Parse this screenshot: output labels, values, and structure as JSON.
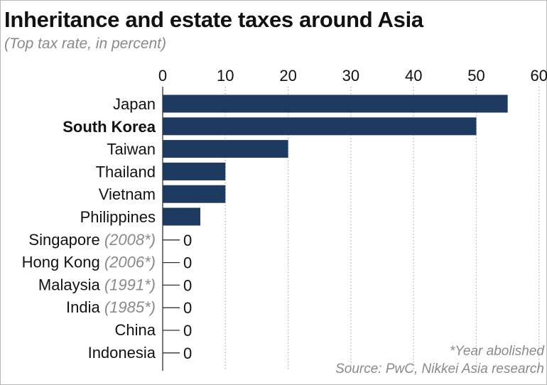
{
  "chart_data": {
    "type": "bar",
    "orientation": "horizontal",
    "title": "Inheritance and estate taxes around Asia",
    "subtitle": "(Top tax rate, in percent)",
    "xlim": [
      0,
      60
    ],
    "ticks": [
      0,
      10,
      20,
      30,
      40,
      50,
      60
    ],
    "categories": [
      {
        "label": "Japan",
        "value": 55,
        "note": "",
        "bold": false
      },
      {
        "label": "South Korea",
        "value": 50,
        "note": "",
        "bold": true
      },
      {
        "label": "Taiwan",
        "value": 20,
        "note": "",
        "bold": false
      },
      {
        "label": "Thailand",
        "value": 10,
        "note": "",
        "bold": false
      },
      {
        "label": "Vietnam",
        "value": 10,
        "note": "",
        "bold": false
      },
      {
        "label": "Philippines",
        "value": 6,
        "note": "",
        "bold": false
      },
      {
        "label": "Singapore",
        "value": 0,
        "note": "(2008*)",
        "bold": false
      },
      {
        "label": "Hong Kong",
        "value": 0,
        "note": "(2006*)",
        "bold": false
      },
      {
        "label": "Malaysia",
        "value": 0,
        "note": "(1991*)",
        "bold": false
      },
      {
        "label": "India",
        "value": 0,
        "note": "(1985*)",
        "bold": false
      },
      {
        "label": "China",
        "value": 0,
        "note": "",
        "bold": false
      },
      {
        "label": "Indonesia",
        "value": 0,
        "note": "",
        "bold": false
      }
    ],
    "footnote": "*Year abolished",
    "source": "Source: PwC, Nikkei Asia research",
    "colors": {
      "bar": "#1f3a60",
      "grid": "#b5b5b5",
      "axis": "#333333"
    }
  }
}
